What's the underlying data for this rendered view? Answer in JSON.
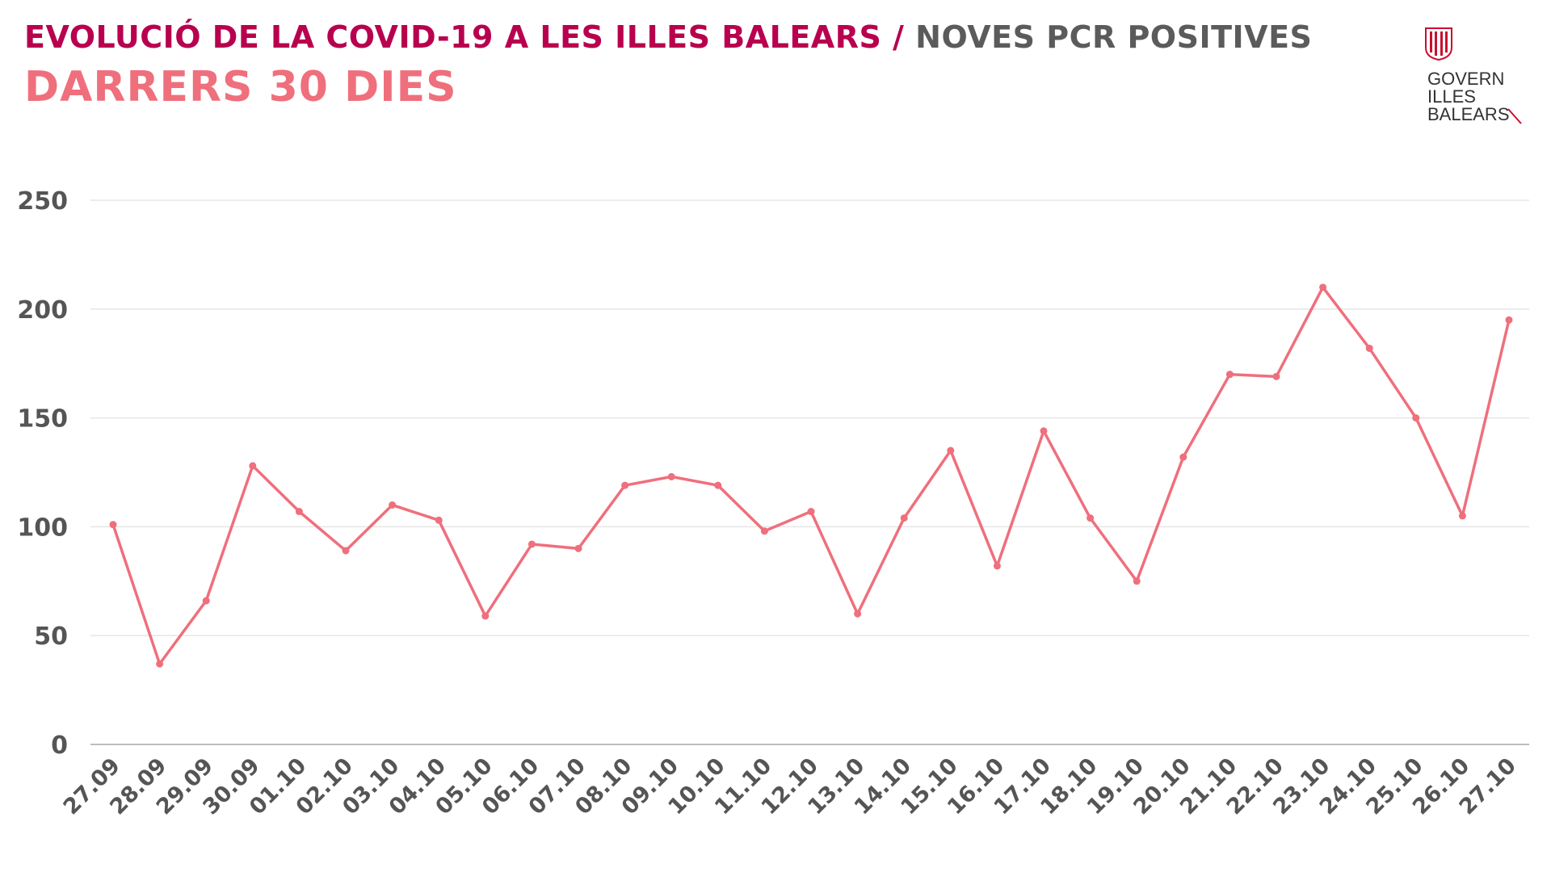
{
  "header": {
    "title_main": "EVOLUCIÓ DE LA COVID-19 A LES ILLES BALEARS",
    "title_sep": " / ",
    "title_sub": "NOVES PCR POSITIVES",
    "subtitle": "DARRERS 30 DIES"
  },
  "logo": {
    "line1": "GOVERN",
    "line2": "ILLES",
    "line3": "BALEARS",
    "color": "#c8102e"
  },
  "colors": {
    "line": "#ef6f7c",
    "title_main": "#b8004f",
    "title_sub": "#5b5b5b",
    "axis_text": "#555555",
    "grid": "#e6e6e6"
  },
  "chart_data": {
    "type": "line",
    "title": "DARRERS 30 DIES",
    "xlabel": "",
    "ylabel": "",
    "ylim": [
      0,
      250
    ],
    "yticks": [
      0,
      50,
      100,
      150,
      200,
      250
    ],
    "grid": true,
    "legend": "none",
    "categories": [
      "27.09",
      "28.09",
      "29.09",
      "30.09",
      "01.10",
      "02.10",
      "03.10",
      "04.10",
      "05.10",
      "06.10",
      "07.10",
      "08.10",
      "09.10",
      "10.10",
      "11.10",
      "12.10",
      "13.10",
      "14.10",
      "15.10",
      "16.10",
      "17.10",
      "18.10",
      "19.10",
      "20.10",
      "21.10",
      "22.10",
      "23.10",
      "24.10",
      "25.10",
      "26.10",
      "27.10"
    ],
    "series": [
      {
        "values": [
          101,
          37,
          66,
          128,
          107,
          89,
          110,
          103,
          59,
          92,
          90,
          119,
          123,
          119,
          98,
          107,
          60,
          104,
          135,
          82,
          144,
          104,
          75,
          132,
          170,
          169,
          210,
          182,
          150,
          105,
          195
        ]
      }
    ]
  }
}
